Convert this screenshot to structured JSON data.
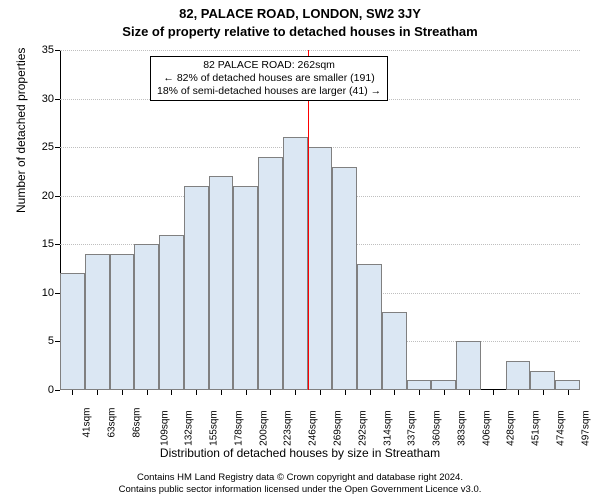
{
  "title_line1": "82, PALACE ROAD, LONDON, SW2 3JY",
  "title_line2": "Size of property relative to detached houses in Streatham",
  "ylabel": "Number of detached properties",
  "xlabel": "Distribution of detached houses by size in Streatham",
  "footer_line1": "Contains HM Land Registry data © Crown copyright and database right 2024.",
  "footer_line2": "Contains public sector information licensed under the Open Government Licence v3.0.",
  "chart": {
    "type": "bar",
    "ylim": [
      0,
      35
    ],
    "ytick_step": 5,
    "yticks": [
      0,
      5,
      10,
      15,
      20,
      25,
      30,
      35
    ],
    "xticks": [
      "41sqm",
      "63sqm",
      "86sqm",
      "109sqm",
      "132sqm",
      "155sqm",
      "178sqm",
      "200sqm",
      "223sqm",
      "246sqm",
      "269sqm",
      "292sqm",
      "314sqm",
      "337sqm",
      "360sqm",
      "383sqm",
      "406sqm",
      "428sqm",
      "451sqm",
      "474sqm",
      "497sqm"
    ],
    "values": [
      12,
      14,
      14,
      15,
      16,
      21,
      22,
      21,
      24,
      26,
      25,
      23,
      13,
      8,
      1,
      1,
      5,
      0,
      3,
      2,
      1
    ],
    "bar_fill": "#dbe7f3",
    "bar_border": "#808080",
    "grid_color": "#bfbfbf",
    "background": "#ffffff",
    "ref_line": {
      "index_after": 10,
      "color": "#ff0000"
    },
    "annotation": {
      "line1": "82 PALACE ROAD: 262sqm",
      "line2": "← 82% of detached houses are smaller (191)",
      "line3": "18% of semi-detached houses are larger (41) →",
      "border": "#000000",
      "bg": "#ffffff",
      "fontsize": 10.5
    },
    "title_fontsize": 13,
    "label_fontsize": 12,
    "tick_fontsize": 11
  }
}
